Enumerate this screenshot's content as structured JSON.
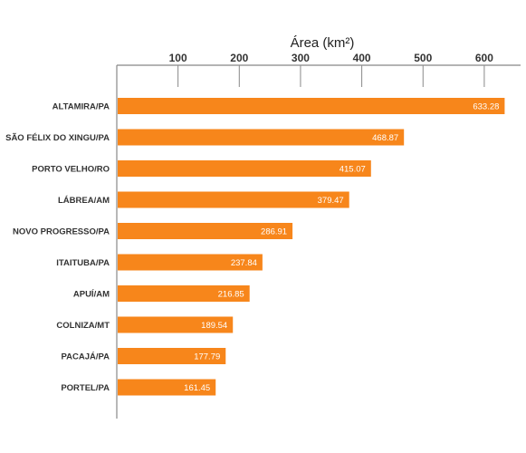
{
  "chart_data": {
    "type": "bar",
    "orientation": "horizontal",
    "title": "",
    "xlabel": "Área (km²)",
    "ylabel": "",
    "xaxis_position": "top",
    "xlim": [
      0,
      630
    ],
    "xticks": [
      100,
      200,
      300,
      400,
      500,
      600
    ],
    "xtick_labels": [
      "100",
      "200",
      "300",
      "400",
      "500",
      "600"
    ],
    "categories": [
      "ALTAMIRA/PA",
      "SÃO FÉLIX DO XINGU/PA",
      "PORTO VELHO/RO",
      "LÁBREA/AM",
      "NOVO PROGRESSO/PA",
      "ITAITUBA/PA",
      "APUÍ/AM",
      "COLNIZA/MT",
      "PACAJÁ/PA",
      "PORTEL/PA"
    ],
    "values": [
      633.28,
      468.87,
      415.07,
      379.47,
      286.91,
      237.84,
      216.85,
      189.54,
      177.79,
      161.45
    ],
    "value_labels": [
      "633.28",
      "468.87",
      "415.07",
      "379.47",
      "286.91",
      "237.84",
      "216.85",
      "189.54",
      "177.79",
      "161.45"
    ],
    "bar_color": "#f7861b",
    "grid": false,
    "legend": "none"
  }
}
